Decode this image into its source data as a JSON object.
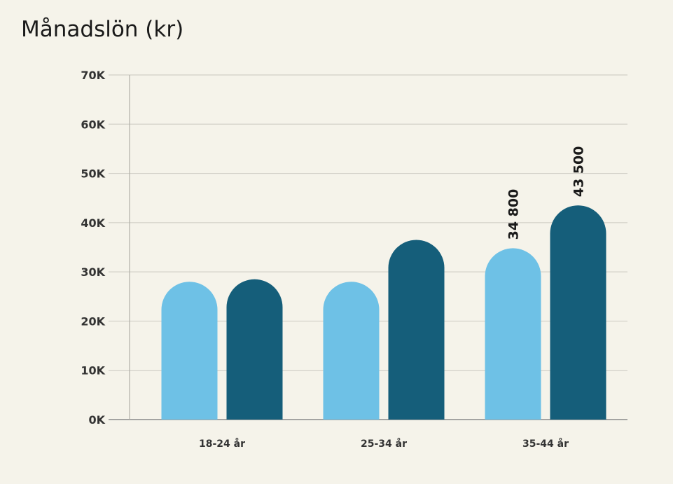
{
  "chart_data": {
    "type": "bar",
    "title": "Månadslön (kr)",
    "categories": [
      "18-24 år",
      "25-34 år",
      "35-44 år"
    ],
    "series": [
      {
        "values": [
          28000,
          28000,
          34800
        ],
        "color": "#6ec1e6"
      },
      {
        "values": [
          28500,
          36500,
          43500
        ],
        "color": "#155e7a"
      }
    ],
    "data_labels": [
      {
        "category": "35-44 år",
        "series": 0,
        "text": "34 800"
      },
      {
        "category": "35-44 år",
        "series": 1,
        "text": "43 500"
      }
    ],
    "y_ticks": [
      "0K",
      "10K",
      "20K",
      "30K",
      "40K",
      "50K",
      "60K",
      "70K"
    ],
    "ylim": [
      0,
      70000
    ],
    "grid": true,
    "xlabel": "",
    "ylabel": ""
  }
}
